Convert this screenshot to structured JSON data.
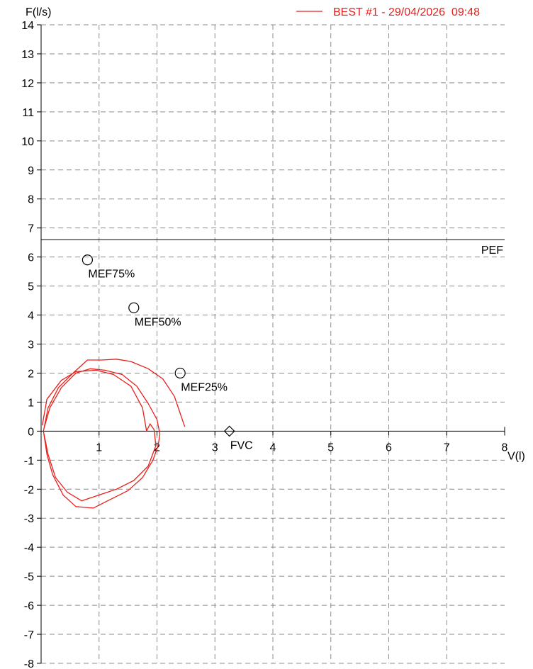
{
  "chart_data": {
    "type": "line",
    "xlabel": "V(l)",
    "ylabel": "F(l/s)",
    "xlim": [
      0,
      8
    ],
    "ylim": [
      -8,
      14
    ],
    "x_ticks": [
      1,
      2,
      3,
      4,
      5,
      6,
      7,
      8
    ],
    "y_ticks": [
      14,
      13,
      12,
      11,
      10,
      9,
      8,
      7,
      6,
      5,
      4,
      3,
      2,
      1,
      0,
      -1,
      -2,
      -3,
      -4,
      -5,
      -6,
      -7,
      -8
    ],
    "grid": true,
    "legend_position": "top-right",
    "colors": {
      "series": "#e8201c",
      "axis": "#000000",
      "grid": "#8c8c8c"
    },
    "series": [
      {
        "name": "BEST #1 - 29/04/2026  09:48",
        "curves": [
          [
            [
              0.04,
              0.0
            ],
            [
              0.12,
              0.8
            ],
            [
              0.3,
              1.5
            ],
            [
              0.55,
              2.0
            ],
            [
              0.8,
              2.45
            ],
            [
              1.05,
              2.45
            ],
            [
              1.3,
              2.48
            ],
            [
              1.55,
              2.4
            ],
            [
              1.85,
              2.15
            ],
            [
              2.1,
              1.8
            ],
            [
              2.3,
              1.2
            ],
            [
              2.42,
              0.5
            ],
            [
              2.48,
              0.15
            ]
          ],
          [
            [
              0.04,
              0.0
            ],
            [
              0.1,
              -0.8
            ],
            [
              0.2,
              -1.5
            ],
            [
              0.38,
              -2.2
            ],
            [
              0.6,
              -2.6
            ],
            [
              0.9,
              -2.65
            ],
            [
              1.2,
              -2.35
            ],
            [
              1.5,
              -2.05
            ],
            [
              1.75,
              -1.6
            ],
            [
              1.93,
              -1.0
            ],
            [
              2.02,
              -0.5
            ],
            [
              2.05,
              -0.1
            ]
          ],
          [
            [
              2.05,
              -0.1
            ],
            [
              2.0,
              0.4
            ],
            [
              1.85,
              0.95
            ],
            [
              1.65,
              1.55
            ],
            [
              1.4,
              1.95
            ],
            [
              1.1,
              2.1
            ],
            [
              0.85,
              2.15
            ],
            [
              0.6,
              2.0
            ],
            [
              0.35,
              1.5
            ],
            [
              0.15,
              0.8
            ],
            [
              0.05,
              0.1
            ]
          ],
          [
            [
              0.05,
              -0.1
            ],
            [
              0.12,
              -0.8
            ],
            [
              0.25,
              -1.6
            ],
            [
              0.45,
              -2.1
            ],
            [
              0.7,
              -2.4
            ],
            [
              1.0,
              -2.2
            ],
            [
              1.3,
              -2.0
            ],
            [
              1.6,
              -1.7
            ],
            [
              1.85,
              -1.2
            ],
            [
              1.98,
              -0.5
            ],
            [
              1.95,
              0.05
            ],
            [
              1.88,
              0.25
            ],
            [
              1.82,
              0.0
            ]
          ],
          [
            [
              1.82,
              0.0
            ],
            [
              1.75,
              0.8
            ],
            [
              1.55,
              1.55
            ],
            [
              1.25,
              1.95
            ],
            [
              0.95,
              2.1
            ],
            [
              0.6,
              2.05
            ],
            [
              0.35,
              1.75
            ],
            [
              0.1,
              1.1
            ],
            [
              0.02,
              0.2
            ]
          ]
        ]
      }
    ],
    "reference_lines": [
      {
        "label": "PEF",
        "y": 6.6
      }
    ],
    "markers": [
      {
        "label": "MEF75%",
        "x": 0.8,
        "y": 5.9,
        "shape": "circle"
      },
      {
        "label": "MEF50%",
        "x": 1.6,
        "y": 4.25,
        "shape": "circle"
      },
      {
        "label": "MEF25%",
        "x": 2.4,
        "y": 2.0,
        "shape": "circle"
      },
      {
        "label": "FVC",
        "x": 3.25,
        "y": 0.0,
        "shape": "diamond"
      }
    ]
  }
}
